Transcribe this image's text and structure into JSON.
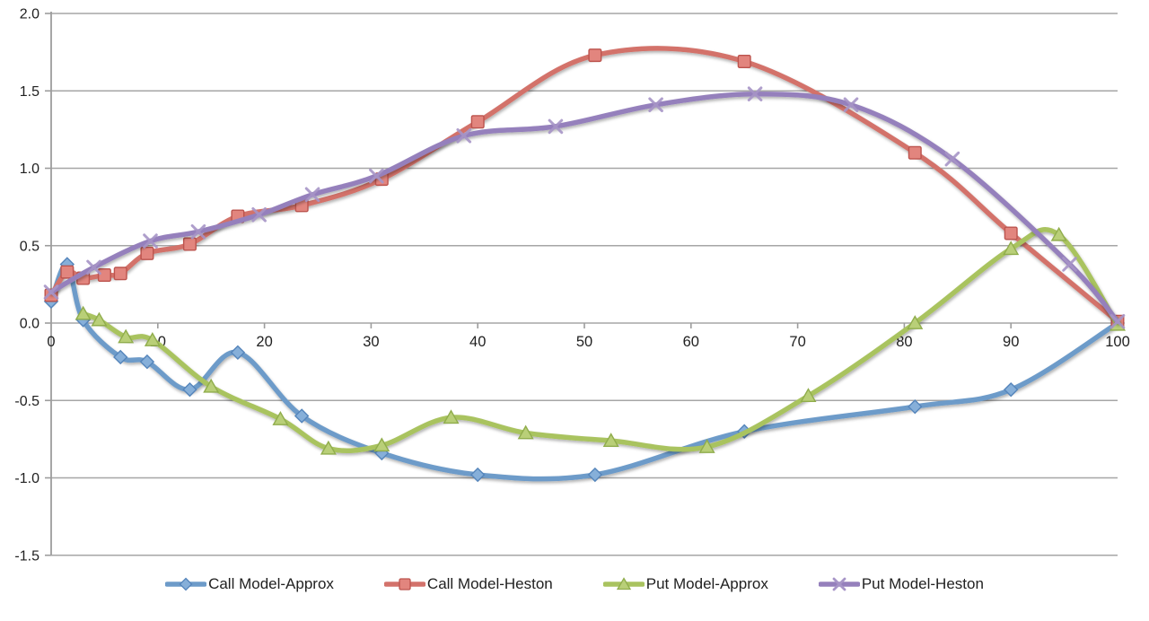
{
  "chart_data": {
    "type": "line",
    "title": "",
    "xlabel": "",
    "ylabel": "",
    "x_range": [
      0,
      100
    ],
    "y_range": [
      -1.5,
      2.0
    ],
    "x_ticks": [
      "0",
      "10",
      "20",
      "30",
      "40",
      "50",
      "60",
      "70",
      "80",
      "90",
      "100"
    ],
    "y_ticks": [
      "2.0",
      "1.5",
      "1.0",
      "0.5",
      "0.0",
      "-0.5",
      "-1.0",
      "-1.5"
    ],
    "grid": "horizontal",
    "smooth_lines": true,
    "legend_position": "bottom",
    "axis_color": "#9d9d9d",
    "grid_color": "#a6a6a6",
    "text_color": "#212121",
    "series": [
      {
        "name": "Call Model-Approx",
        "marker": "diamond",
        "color": "#6d9bc9",
        "marker_fill": "#86afd9",
        "marker_stroke": "#5585bb",
        "x": [
          0,
          1.5,
          3,
          6.5,
          9,
          13,
          17.5,
          23.5,
          31,
          40,
          51,
          65,
          81,
          90,
          100
        ],
        "y": [
          0.14,
          0.38,
          0.02,
          -0.22,
          -0.25,
          -0.43,
          -0.19,
          -0.6,
          -0.84,
          -0.98,
          -0.98,
          -0.7,
          -0.54,
          -0.43,
          0.0
        ]
      },
      {
        "name": "Call Model-Heston",
        "marker": "square",
        "color": "#d3726b",
        "marker_fill": "#e2857e",
        "marker_stroke": "#bc544e",
        "x": [
          0,
          1.5,
          3,
          5,
          6.5,
          9,
          13,
          17.5,
          23.5,
          31,
          40,
          51,
          65,
          81,
          90,
          100
        ],
        "y": [
          0.18,
          0.33,
          0.29,
          0.31,
          0.32,
          0.45,
          0.51,
          0.69,
          0.76,
          0.93,
          1.3,
          1.73,
          1.69,
          1.1,
          0.58,
          0.01
        ]
      },
      {
        "name": "Put Model-Approx",
        "marker": "triangle",
        "color": "#a9c35f",
        "marker_fill": "#b9cf78",
        "marker_stroke": "#90ad4c",
        "x": [
          3,
          4.5,
          7,
          9.5,
          15,
          21.5,
          26,
          31,
          37.5,
          44.5,
          52.5,
          61.5,
          71,
          81,
          90,
          94.5,
          100
        ],
        "y": [
          0.06,
          0.02,
          -0.09,
          -0.11,
          -0.41,
          -0.62,
          -0.81,
          -0.79,
          -0.61,
          -0.71,
          -0.76,
          -0.8,
          -0.47,
          0.0,
          0.48,
          0.57,
          -0.01
        ]
      },
      {
        "name": "Put Model-Heston",
        "marker": "x",
        "color": "#9580bc",
        "marker_fill": "#a795c7",
        "marker_stroke": "#9787be",
        "x": [
          0,
          4,
          9.3,
          13.8,
          19.5,
          24.5,
          30.5,
          38.7,
          47.3,
          56.7,
          66,
          75,
          84.5,
          95.5,
          100
        ],
        "y": [
          0.2,
          0.36,
          0.53,
          0.59,
          0.7,
          0.83,
          0.95,
          1.21,
          1.27,
          1.41,
          1.48,
          1.41,
          1.06,
          0.38,
          0.01
        ]
      }
    ]
  }
}
